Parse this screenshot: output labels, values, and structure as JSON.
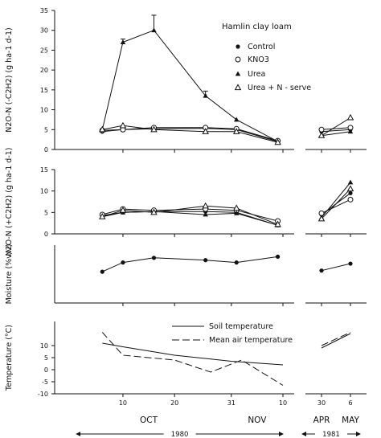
{
  "chart_data": {
    "type": "line",
    "x_axis": {
      "segments": [
        {
          "start": "1980-10-03",
          "end": "1980-11-10"
        },
        {
          "start": "1981-04-28",
          "end": "1981-05-08"
        }
      ],
      "ticks": [
        {
          "date": "1980-10-10",
          "label": "10"
        },
        {
          "date": "1980-10-20",
          "label": "20"
        },
        {
          "date": "1980-10-31",
          "label": "31"
        },
        {
          "date": "1980-11-10",
          "label": "10"
        },
        {
          "date": "1981-04-30",
          "label": "30"
        },
        {
          "date": "1981-05-06",
          "label": "6"
        }
      ],
      "months": [
        {
          "label": "OCT",
          "date": "1980-10-15"
        },
        {
          "label": "NOV",
          "date": "1980-11-05"
        },
        {
          "label": "APR",
          "date": "1981-04-30"
        },
        {
          "label": "MAY",
          "date": "1981-05-06"
        }
      ],
      "years": [
        {
          "label": "1980",
          "from": "1980-10-01",
          "to": "1980-11-10"
        },
        {
          "label": "1981",
          "from": "1981-04-26",
          "to": "1981-05-08"
        }
      ]
    },
    "panels": [
      {
        "id": "n2o-minus",
        "ylabel": "N2O-N (-C2H2) (g ha-1 d-1)",
        "ylim": [
          0,
          35
        ],
        "yticks": [
          0,
          5,
          10,
          15,
          20,
          25,
          30,
          35
        ],
        "annotation": "Hamlin clay loam",
        "legend": "top-right",
        "series": [
          {
            "name": "Control",
            "marker": "filled-circle",
            "points": [
              [
                "1980-10-06",
                4.5
              ],
              [
                "1980-10-10",
                5.0
              ],
              [
                "1980-10-16",
                5.2
              ],
              [
                "1980-10-26",
                5.3
              ],
              [
                "1980-11-01",
                5.0
              ],
              [
                "1980-11-09",
                2.0
              ],
              [
                "1981-04-30",
                4.5
              ],
              [
                "1981-05-06",
                5.0
              ]
            ]
          },
          {
            "name": "KNO3",
            "marker": "open-circle",
            "points": [
              [
                "1980-10-06",
                4.8
              ],
              [
                "1980-10-10",
                5.0
              ],
              [
                "1980-10-16",
                5.5
              ],
              [
                "1980-10-26",
                5.5
              ],
              [
                "1980-11-01",
                5.2
              ],
              [
                "1980-11-09",
                2.2
              ],
              [
                "1981-04-30",
                5.0
              ],
              [
                "1981-05-06",
                5.5
              ]
            ]
          },
          {
            "name": "Urea",
            "marker": "filled-triangle",
            "points": [
              [
                "1980-10-06",
                5.0
              ],
              [
                "1980-10-10",
                27.0
              ],
              [
                "1980-10-16",
                30.0
              ],
              [
                "1980-10-26",
                13.5
              ],
              [
                "1980-11-01",
                7.5
              ],
              [
                "1980-11-09",
                2.0
              ],
              [
                "1981-04-30",
                3.5
              ],
              [
                "1981-05-06",
                4.5
              ]
            ],
            "errors": [
              0,
              0.8,
              3.8,
              1.2,
              0,
              0,
              0,
              0
            ]
          },
          {
            "name": "Urea + N - serve",
            "marker": "open-triangle",
            "points": [
              [
                "1980-10-06",
                5.0
              ],
              [
                "1980-10-10",
                6.0
              ],
              [
                "1980-10-16",
                5.0
              ],
              [
                "1980-10-26",
                4.5
              ],
              [
                "1980-11-01",
                4.5
              ],
              [
                "1980-11-09",
                1.8
              ],
              [
                "1981-04-30",
                3.5
              ],
              [
                "1981-05-06",
                8.0
              ]
            ]
          }
        ]
      },
      {
        "id": "n2o-plus",
        "ylabel": "N2O-N (+C2H2) (g ha-1 d-1)",
        "ylim": [
          0,
          15
        ],
        "yticks": [
          0,
          5,
          10,
          15
        ],
        "series": [
          {
            "name": "Control",
            "marker": "filled-circle",
            "points": [
              [
                "1980-10-06",
                4.3
              ],
              [
                "1980-10-10",
                5.0
              ],
              [
                "1980-10-16",
                5.2
              ],
              [
                "1980-10-26",
                5.2
              ],
              [
                "1980-11-01",
                5.0
              ],
              [
                "1980-11-09",
                2.0
              ],
              [
                "1981-04-30",
                4.5
              ],
              [
                "1981-05-06",
                9.5
              ]
            ]
          },
          {
            "name": "KNO3",
            "marker": "open-circle",
            "points": [
              [
                "1980-10-06",
                4.5
              ],
              [
                "1980-10-10",
                5.8
              ],
              [
                "1980-10-16",
                5.5
              ],
              [
                "1980-10-26",
                5.8
              ],
              [
                "1980-11-01",
                5.5
              ],
              [
                "1980-11-09",
                3.0
              ],
              [
                "1981-04-30",
                4.8
              ],
              [
                "1981-05-06",
                8.0
              ]
            ]
          },
          {
            "name": "Urea",
            "marker": "filled-triangle",
            "points": [
              [
                "1980-10-06",
                4.0
              ],
              [
                "1980-10-10",
                5.0
              ],
              [
                "1980-10-16",
                5.2
              ],
              [
                "1980-10-26",
                4.5
              ],
              [
                "1980-11-01",
                4.8
              ],
              [
                "1980-11-09",
                2.0
              ],
              [
                "1981-04-30",
                3.8
              ],
              [
                "1981-05-06",
                12.0
              ]
            ]
          },
          {
            "name": "Urea + N - serve",
            "marker": "open-triangle",
            "points": [
              [
                "1980-10-06",
                4.0
              ],
              [
                "1980-10-10",
                5.5
              ],
              [
                "1980-10-16",
                5.0
              ],
              [
                "1980-10-26",
                6.5
              ],
              [
                "1980-11-01",
                6.0
              ],
              [
                "1980-11-09",
                2.2
              ],
              [
                "1981-04-30",
                3.5
              ],
              [
                "1981-05-06",
                10.5
              ]
            ]
          }
        ]
      },
      {
        "id": "moisture",
        "ylabel": "Moisture (%v/v)",
        "yticks": [],
        "ylim": [
          0,
          25
        ],
        "series": [
          {
            "name": "Moisture",
            "marker": "filled-circle",
            "points": [
              [
                "1980-10-06",
                13.5
              ],
              [
                "1980-10-10",
                17.5
              ],
              [
                "1980-10-16",
                19.5
              ],
              [
                "1980-10-26",
                18.5
              ],
              [
                "1980-11-01",
                17.5
              ],
              [
                "1980-11-09",
                20.0
              ],
              [
                "1981-04-30",
                14.0
              ],
              [
                "1981-05-06",
                17.0
              ]
            ]
          }
        ]
      },
      {
        "id": "temperature",
        "ylabel": "Temperature (°C)",
        "ylim": [
          -10,
          20
        ],
        "yticks": [
          -10,
          -5,
          0,
          5,
          10
        ],
        "legend": "top-center",
        "series": [
          {
            "name": "Soil temperature",
            "style": "solid",
            "points": [
              [
                "1980-10-06",
                11.0
              ],
              [
                "1980-10-10",
                9.5
              ],
              [
                "1980-10-20",
                6.0
              ],
              [
                "1980-10-31",
                3.5
              ],
              [
                "1980-11-10",
                2.0
              ],
              [
                "1981-04-30",
                9.0
              ],
              [
                "1981-05-06",
                15.0
              ]
            ]
          },
          {
            "name": "Mean air temperature",
            "style": "dashed",
            "points": [
              [
                "1980-10-06",
                15.5
              ],
              [
                "1980-10-10",
                6.0
              ],
              [
                "1980-10-20",
                4.0
              ],
              [
                "1980-10-27",
                -1.0
              ],
              [
                "1980-11-02",
                4.0
              ],
              [
                "1980-11-10",
                -6.5
              ],
              [
                "1981-04-30",
                10.0
              ],
              [
                "1981-05-06",
                15.5
              ]
            ]
          }
        ]
      }
    ]
  }
}
